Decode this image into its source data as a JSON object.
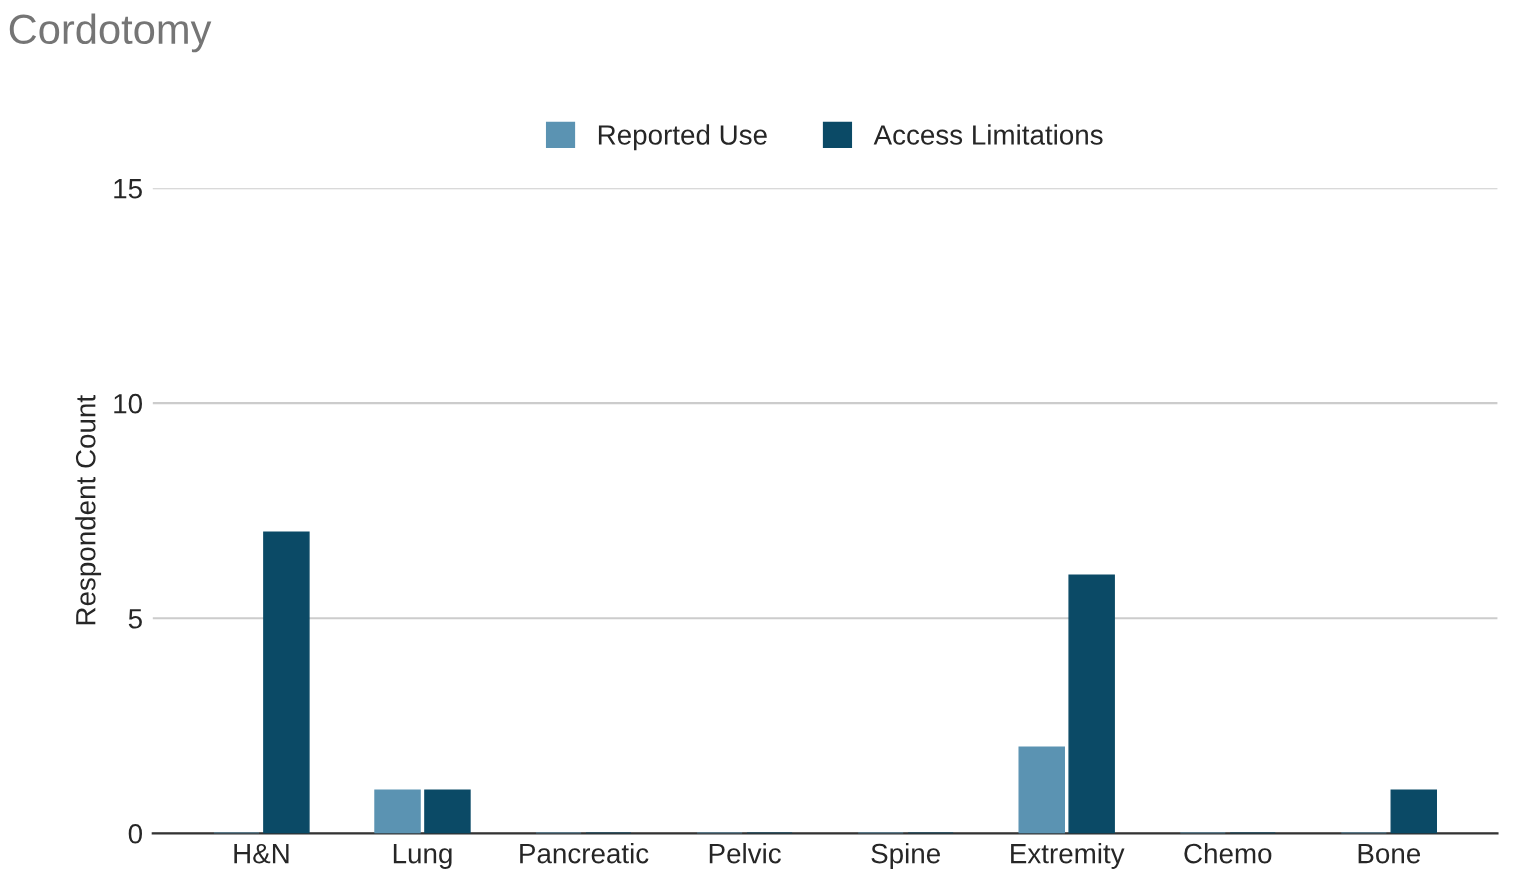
{
  "chart_data": {
    "type": "bar",
    "title": "Cordotomy",
    "ylabel": "Respondent Count",
    "categories": [
      "H&N",
      "Lung",
      "Pancreatic",
      "Pelvic",
      "Spine",
      "Extremity",
      "Chemo",
      "Bone"
    ],
    "series": [
      {
        "name": "Reported Use",
        "color": "#5b93b2",
        "values": [
          0,
          1,
          0,
          0,
          0,
          2,
          0,
          0
        ]
      },
      {
        "name": "Access Limitations",
        "color": "#0b4a66",
        "values": [
          7,
          1,
          0,
          0,
          0,
          6,
          0,
          1
        ]
      }
    ],
    "ylim": [
      0,
      15
    ],
    "yticks": [
      0,
      5,
      10,
      15
    ],
    "grid": "y",
    "legend": "top"
  }
}
